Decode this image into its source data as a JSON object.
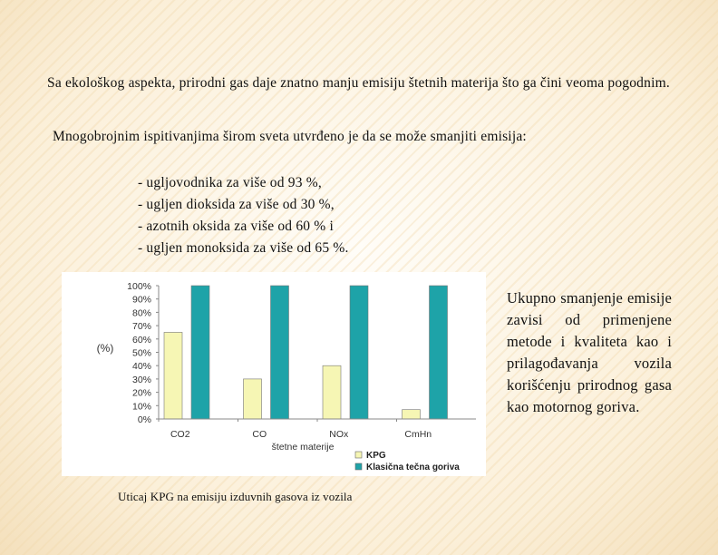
{
  "slide": {
    "paragraph1": "Sa ekološkog aspekta, prirodni gas daje znatno manju emisiju štetnih  materija što ga čini veoma pogodnim.",
    "paragraph2": "Mnogobrojnim ispitivanjima širom sveta utvrđeno je da se može  smanjiti emisija:",
    "list": [
      "- ugljovodnika za više od 93 %,",
      "- ugljen dioksida za više od 30 %,",
      "- azotnih oksida za više od 60 % i",
      "- ugljen monoksida za više od 65 %."
    ],
    "side_text": "Ukupno smanjenje emisije zavisi od primenjene metode i kvaliteta kao i prilagođavanja vozila korišćenju prirodnog gasa kao motornog goriva.",
    "caption": "Uticaj KPG na emisiju izduvnih gasova iz vozila"
  },
  "chart_data": {
    "type": "bar",
    "categories": [
      "CO2",
      "CO",
      "NOx",
      "CmHn"
    ],
    "series": [
      {
        "name": "KPG",
        "values": [
          65,
          30,
          40,
          7
        ],
        "color": "#f6f6b4"
      },
      {
        "name": "Klasična tečna goriva",
        "values": [
          100,
          100,
          100,
          100
        ],
        "color": "#1ea3a8"
      }
    ],
    "yticks": [
      "0%",
      "10%",
      "20%",
      "30%",
      "40%",
      "50%",
      "60%",
      "70%",
      "80%",
      "90%",
      "100%"
    ],
    "ylabel": "(%)",
    "xlabel": "štetne materije",
    "ylim": [
      0,
      100
    ],
    "grid": false,
    "legend": "bottom-right"
  }
}
